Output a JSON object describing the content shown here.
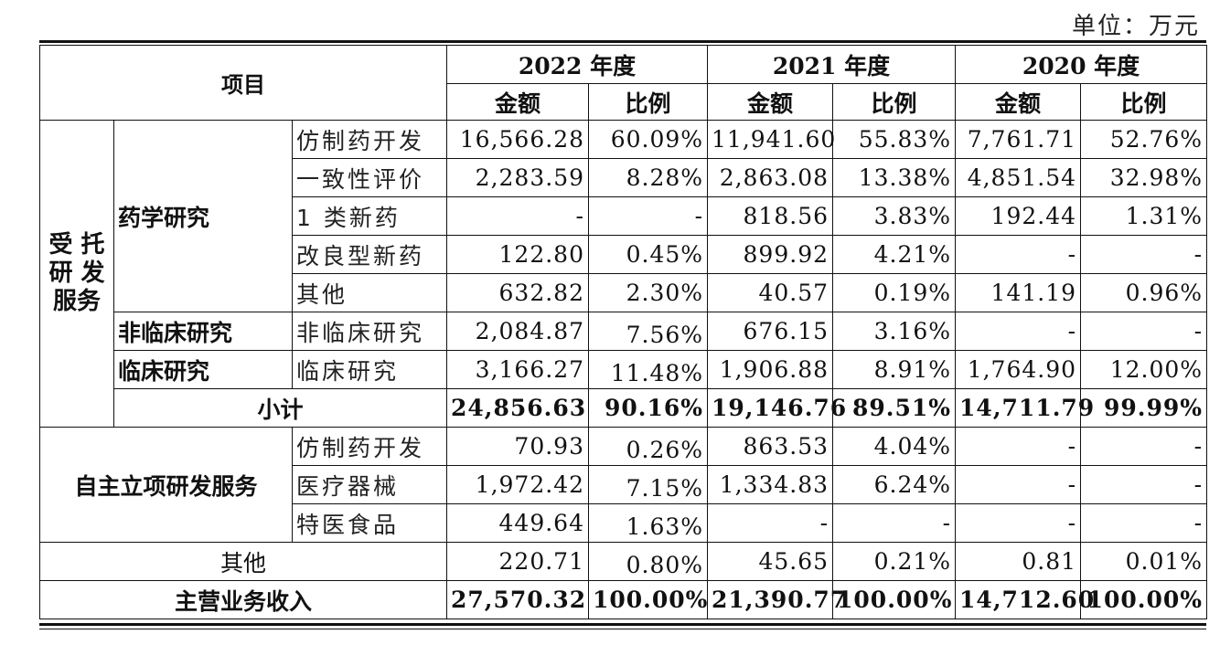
{
  "unit_label": "单位：万元",
  "header": {
    "item": "项目",
    "years": [
      "2022 年度",
      "2021 年度",
      "2020 年度"
    ],
    "amount": "金额",
    "ratio": "比例"
  },
  "sections": {
    "contract": {
      "label_lines": [
        "受 托",
        "研 发",
        "服务"
      ]
    },
    "pharma": "药学研究",
    "nonclinical": "非临床研究",
    "clinical": "临床研究",
    "self": "自主立项研发服务"
  },
  "rows": [
    {
      "sub": "仿制药开发",
      "v": [
        "16,566.28",
        "60.09%",
        "11,941.60",
        "55.83%",
        "7,761.71",
        "52.76%"
      ]
    },
    {
      "sub": "一致性评价",
      "v": [
        "2,283.59",
        "8.28%",
        "2,863.08",
        "13.38%",
        "4,851.54",
        "32.98%"
      ]
    },
    {
      "sub": "1 类新药",
      "v": [
        "-",
        "-",
        "818.56",
        "3.83%",
        "192.44",
        "1.31%"
      ]
    },
    {
      "sub": "改良型新药",
      "v": [
        "122.80",
        "0.45%",
        "899.92",
        "4.21%",
        "-",
        "-"
      ]
    },
    {
      "sub": "其他",
      "v": [
        "632.82",
        "2.30%",
        "40.57",
        "0.19%",
        "141.19",
        "0.96%"
      ]
    },
    {
      "sub": "非临床研究",
      "v": [
        "2,084.87",
        "7.56%",
        "676.15",
        "3.16%",
        "-",
        "-"
      ]
    },
    {
      "sub": "临床研究",
      "v": [
        "3,166.27",
        "11.48%",
        "1,906.88",
        "8.91%",
        "1,764.90",
        "12.00%"
      ]
    },
    {
      "label": "小计",
      "v": [
        "24,856.63",
        "90.16%",
        "19,146.76",
        "89.51%",
        "14,711.79",
        "99.99%"
      ]
    },
    {
      "sub": "仿制药开发",
      "v": [
        "70.93",
        "0.26%",
        "863.53",
        "4.04%",
        "-",
        "-"
      ]
    },
    {
      "sub": "医疗器械",
      "v": [
        "1,972.42",
        "7.15%",
        "1,334.83",
        "6.24%",
        "-",
        "-"
      ]
    },
    {
      "sub": "特医食品",
      "v": [
        "449.64",
        "1.63%",
        "-",
        "-",
        "-",
        "-"
      ]
    },
    {
      "label": "其他",
      "v": [
        "220.71",
        "0.80%",
        "45.65",
        "0.21%",
        "0.81",
        "0.01%"
      ]
    },
    {
      "label": "主营业务收入",
      "v": [
        "27,570.32",
        "100.00%",
        "21,390.77",
        "100.00%",
        "14,712.60",
        "100.00%"
      ]
    }
  ]
}
